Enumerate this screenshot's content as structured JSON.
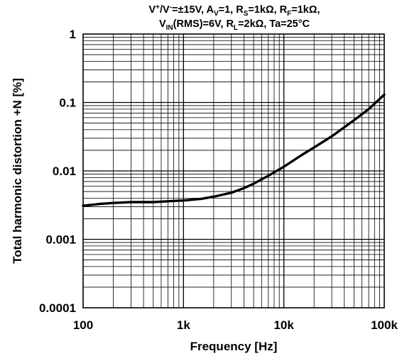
{
  "chart_data": {
    "type": "line",
    "conditions_line1": {
      "a": "V",
      "b": "+",
      "c": "/V",
      "d": "-",
      "e": "=±15V, A",
      "f": "V",
      "g": "=1, R",
      "h": "S",
      "i": "=1kΩ, R",
      "j": "F",
      "k": "=1kΩ,"
    },
    "conditions_line2": {
      "a": "V",
      "b": "IN",
      "c": "(RMS)=6V, R",
      "d": "L",
      "e": "=2kΩ, Ta=25°C"
    },
    "xlabel": "Frequency [Hz]",
    "ylabel": "Total harmonic distortion +N [%]",
    "x_scale": "log",
    "y_scale": "log",
    "xlim": [
      100,
      100000
    ],
    "ylim": [
      0.0001,
      1
    ],
    "x_ticks": [
      {
        "value": 100,
        "label": "100"
      },
      {
        "value": 1000,
        "label": "1k"
      },
      {
        "value": 10000,
        "label": "10k"
      },
      {
        "value": 100000,
        "label": "100k"
      }
    ],
    "y_ticks": [
      {
        "value": 1,
        "label": "1"
      },
      {
        "value": 0.1,
        "label": "0.1"
      },
      {
        "value": 0.01,
        "label": "0.01"
      },
      {
        "value": 0.001,
        "label": "0.001"
      },
      {
        "value": 0.0001,
        "label": "0.0001"
      }
    ],
    "grid": true,
    "series": [
      {
        "color": "#000000",
        "x": [
          100,
          150,
          200,
          300,
          500,
          700,
          1000,
          1500,
          2000,
          3000,
          4000,
          5000,
          7000,
          10000,
          15000,
          20000,
          30000,
          50000,
          70000,
          100000
        ],
        "y": [
          0.0031,
          0.0033,
          0.0034,
          0.0035,
          0.0035,
          0.0036,
          0.0037,
          0.0039,
          0.0042,
          0.0048,
          0.0056,
          0.0065,
          0.0085,
          0.0115,
          0.017,
          0.022,
          0.032,
          0.055,
          0.08,
          0.13
        ]
      }
    ]
  }
}
